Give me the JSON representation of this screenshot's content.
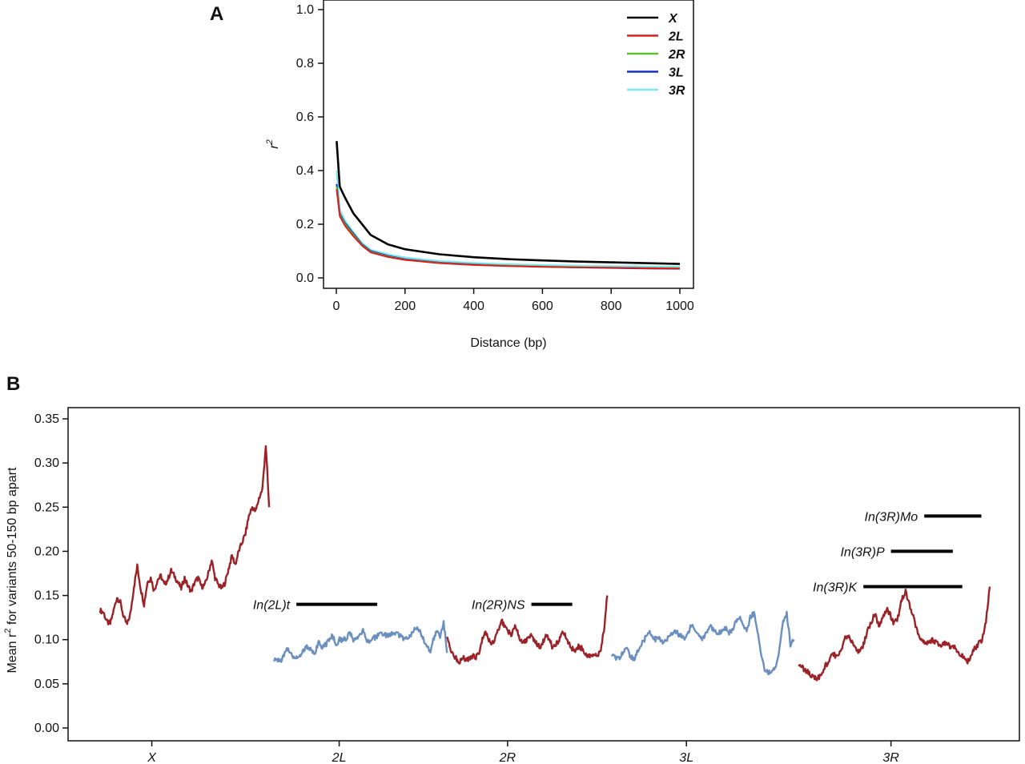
{
  "chart_data": [
    {
      "panel": "A",
      "type": "line",
      "title": "",
      "xlabel": "Distance (bp)",
      "ylabel": "r",
      "ylabel_superscript": "2",
      "xlim": [
        0,
        1000
      ],
      "ylim": [
        0,
        1.0
      ],
      "xticks": [
        0,
        200,
        400,
        600,
        800,
        1000
      ],
      "yticks": [
        0.0,
        0.2,
        0.4,
        0.6,
        0.8,
        1.0
      ],
      "xtick_labels": [
        "0",
        "200",
        "400",
        "600",
        "800",
        "1000"
      ],
      "ytick_labels": [
        "0.0",
        "0.2",
        "0.4",
        "0.6",
        "0.8",
        "1.0"
      ],
      "grid": false,
      "legend_position": "top-right",
      "series": [
        {
          "name": "X",
          "color": "#000000",
          "x": [
            1,
            10,
            25,
            50,
            75,
            100,
            150,
            200,
            300,
            400,
            500,
            600,
            700,
            800,
            900,
            1000
          ],
          "y": [
            0.51,
            0.34,
            0.3,
            0.24,
            0.2,
            0.16,
            0.125,
            0.107,
            0.088,
            0.077,
            0.07,
            0.065,
            0.061,
            0.058,
            0.055,
            0.052
          ]
        },
        {
          "name": "2L",
          "color": "#d62020",
          "x": [
            1,
            10,
            25,
            50,
            75,
            100,
            150,
            200,
            300,
            400,
            500,
            600,
            700,
            800,
            900,
            1000
          ],
          "y": [
            0.33,
            0.23,
            0.195,
            0.155,
            0.12,
            0.095,
            0.078,
            0.067,
            0.055,
            0.048,
            0.044,
            0.041,
            0.039,
            0.038,
            0.036,
            0.035
          ]
        },
        {
          "name": "2R",
          "color": "#5fbf2a",
          "x": [
            1,
            10,
            25,
            50,
            75,
            100,
            150,
            200,
            300,
            400,
            500,
            600,
            700,
            800,
            900,
            1000
          ],
          "y": [
            0.34,
            0.235,
            0.2,
            0.16,
            0.122,
            0.097,
            0.08,
            0.068,
            0.056,
            0.049,
            0.045,
            0.042,
            0.04,
            0.038,
            0.037,
            0.036
          ]
        },
        {
          "name": "3L",
          "color": "#1530c8",
          "x": [
            1,
            10,
            25,
            50,
            75,
            100,
            150,
            200,
            300,
            400,
            500,
            600,
            700,
            800,
            900,
            1000
          ],
          "y": [
            0.35,
            0.24,
            0.205,
            0.165,
            0.125,
            0.1,
            0.082,
            0.07,
            0.057,
            0.05,
            0.045,
            0.042,
            0.039,
            0.037,
            0.035,
            0.034
          ]
        },
        {
          "name": "3R",
          "color": "#7ee6ee",
          "x": [
            1,
            10,
            25,
            50,
            75,
            100,
            150,
            200,
            300,
            400,
            500,
            600,
            700,
            800,
            900,
            1000
          ],
          "y": [
            0.4,
            0.255,
            0.215,
            0.17,
            0.13,
            0.105,
            0.088,
            0.076,
            0.063,
            0.056,
            0.051,
            0.048,
            0.046,
            0.044,
            0.043,
            0.042
          ]
        }
      ]
    },
    {
      "panel": "B",
      "type": "line",
      "title": "",
      "xlabel": "",
      "ylabel": "Mean r",
      "ylabel_superscript": "2",
      "ylabel_suffix": " for variants 50-150 bp apart",
      "ylim": [
        0,
        0.35
      ],
      "yticks": [
        0.0,
        0.05,
        0.1,
        0.15,
        0.2,
        0.25,
        0.3,
        0.35
      ],
      "ytick_labels": [
        "0.00",
        "0.05",
        "0.10",
        "0.15",
        "0.20",
        "0.25",
        "0.30",
        "0.35"
      ],
      "xlim": [
        0,
        1
      ],
      "categories": [
        "X",
        "2L",
        "2R",
        "3L",
        "3R"
      ],
      "category_positions": [
        0.088,
        0.285,
        0.462,
        0.65,
        0.865
      ],
      "grid": false,
      "series": [
        {
          "name": "X",
          "color": "#9b2226",
          "x": [
            0.0,
            0.02,
            0.04,
            0.06,
            0.08,
            0.1,
            0.12,
            0.14,
            0.16,
            0.18,
            0.2,
            0.22,
            0.24,
            0.26,
            0.28,
            0.3,
            0.32,
            0.34,
            0.36,
            0.38,
            0.4,
            0.42,
            0.44,
            0.46,
            0.48,
            0.5,
            0.52,
            0.54,
            0.56,
            0.58,
            0.6,
            0.62,
            0.64,
            0.66,
            0.68,
            0.7,
            0.72,
            0.74,
            0.76,
            0.78,
            0.8,
            0.82,
            0.84,
            0.86,
            0.88,
            0.9,
            0.92,
            0.94,
            0.96,
            0.98,
            1.0
          ],
          "y": [
            0.133,
            0.131,
            0.12,
            0.118,
            0.133,
            0.148,
            0.142,
            0.125,
            0.117,
            0.13,
            0.16,
            0.183,
            0.158,
            0.14,
            0.165,
            0.17,
            0.155,
            0.168,
            0.172,
            0.162,
            0.168,
            0.178,
            0.172,
            0.165,
            0.158,
            0.17,
            0.16,
            0.155,
            0.165,
            0.17,
            0.16,
            0.162,
            0.175,
            0.19,
            0.17,
            0.162,
            0.158,
            0.165,
            0.18,
            0.195,
            0.185,
            0.2,
            0.21,
            0.22,
            0.24,
            0.25,
            0.245,
            0.26,
            0.27,
            0.32,
            0.25
          ]
        },
        {
          "name": "2L",
          "color": "#6b8fbf",
          "x": [
            0.0,
            0.02,
            0.04,
            0.06,
            0.08,
            0.1,
            0.12,
            0.14,
            0.16,
            0.18,
            0.2,
            0.22,
            0.24,
            0.26,
            0.28,
            0.3,
            0.32,
            0.34,
            0.36,
            0.38,
            0.4,
            0.42,
            0.44,
            0.46,
            0.48,
            0.5,
            0.52,
            0.54,
            0.56,
            0.58,
            0.6,
            0.62,
            0.64,
            0.66,
            0.68,
            0.7,
            0.72,
            0.74,
            0.76,
            0.78,
            0.8,
            0.82,
            0.84,
            0.86,
            0.88,
            0.9,
            0.92,
            0.94,
            0.96,
            0.98,
            1.0
          ],
          "y": [
            0.075,
            0.078,
            0.076,
            0.082,
            0.09,
            0.085,
            0.08,
            0.08,
            0.084,
            0.09,
            0.092,
            0.088,
            0.086,
            0.098,
            0.092,
            0.094,
            0.1,
            0.105,
            0.095,
            0.1,
            0.1,
            0.102,
            0.108,
            0.098,
            0.1,
            0.106,
            0.11,
            0.098,
            0.1,
            0.102,
            0.104,
            0.108,
            0.105,
            0.104,
            0.106,
            0.108,
            0.105,
            0.103,
            0.1,
            0.104,
            0.108,
            0.115,
            0.11,
            0.102,
            0.095,
            0.085,
            0.1,
            0.11,
            0.104,
            0.12,
            0.085
          ]
        },
        {
          "name": "2R",
          "color": "#9b2226",
          "x": [
            0.0,
            0.02,
            0.04,
            0.06,
            0.08,
            0.1,
            0.12,
            0.14,
            0.16,
            0.18,
            0.2,
            0.22,
            0.24,
            0.26,
            0.28,
            0.3,
            0.32,
            0.34,
            0.36,
            0.38,
            0.4,
            0.42,
            0.44,
            0.46,
            0.48,
            0.5,
            0.52,
            0.54,
            0.56,
            0.58,
            0.6,
            0.62,
            0.64,
            0.66,
            0.68,
            0.7,
            0.72,
            0.74,
            0.76,
            0.78,
            0.8,
            0.82,
            0.84,
            0.86,
            0.88,
            0.9,
            0.92,
            0.94,
            0.96,
            0.98,
            1.0
          ],
          "y": [
            0.105,
            0.09,
            0.082,
            0.078,
            0.075,
            0.08,
            0.076,
            0.078,
            0.082,
            0.08,
            0.085,
            0.1,
            0.108,
            0.1,
            0.095,
            0.1,
            0.112,
            0.122,
            0.115,
            0.11,
            0.105,
            0.115,
            0.108,
            0.1,
            0.098,
            0.1,
            0.105,
            0.1,
            0.095,
            0.092,
            0.098,
            0.105,
            0.1,
            0.09,
            0.095,
            0.1,
            0.108,
            0.104,
            0.095,
            0.09,
            0.088,
            0.092,
            0.09,
            0.085,
            0.082,
            0.08,
            0.085,
            0.082,
            0.09,
            0.11,
            0.15
          ]
        },
        {
          "name": "3L",
          "color": "#6b8fbf",
          "x": [
            0.0,
            0.02,
            0.04,
            0.06,
            0.08,
            0.1,
            0.12,
            0.14,
            0.16,
            0.18,
            0.2,
            0.22,
            0.24,
            0.26,
            0.28,
            0.3,
            0.32,
            0.34,
            0.36,
            0.38,
            0.4,
            0.42,
            0.44,
            0.46,
            0.48,
            0.5,
            0.52,
            0.54,
            0.56,
            0.58,
            0.6,
            0.62,
            0.64,
            0.66,
            0.68,
            0.7,
            0.72,
            0.74,
            0.76,
            0.78,
            0.8,
            0.82,
            0.84,
            0.86,
            0.88,
            0.9,
            0.92,
            0.94,
            0.96,
            0.98,
            1.0
          ],
          "y": [
            0.082,
            0.08,
            0.078,
            0.085,
            0.09,
            0.082,
            0.078,
            0.085,
            0.095,
            0.1,
            0.11,
            0.104,
            0.1,
            0.102,
            0.098,
            0.1,
            0.105,
            0.11,
            0.108,
            0.104,
            0.1,
            0.108,
            0.118,
            0.112,
            0.105,
            0.1,
            0.108,
            0.115,
            0.11,
            0.105,
            0.11,
            0.114,
            0.108,
            0.11,
            0.12,
            0.125,
            0.115,
            0.11,
            0.125,
            0.13,
            0.11,
            0.085,
            0.065,
            0.062,
            0.065,
            0.07,
            0.09,
            0.12,
            0.13,
            0.095,
            0.1
          ]
        },
        {
          "name": "3R",
          "color": "#9b2226",
          "x": [
            0.0,
            0.02,
            0.04,
            0.06,
            0.08,
            0.1,
            0.12,
            0.14,
            0.16,
            0.18,
            0.2,
            0.22,
            0.24,
            0.26,
            0.28,
            0.3,
            0.32,
            0.34,
            0.36,
            0.38,
            0.4,
            0.42,
            0.44,
            0.46,
            0.48,
            0.5,
            0.52,
            0.54,
            0.56,
            0.58,
            0.6,
            0.62,
            0.64,
            0.66,
            0.68,
            0.7,
            0.72,
            0.74,
            0.76,
            0.78,
            0.8,
            0.82,
            0.84,
            0.86,
            0.88,
            0.9,
            0.92,
            0.94,
            0.96,
            0.98,
            1.0
          ],
          "y": [
            0.07,
            0.068,
            0.065,
            0.06,
            0.058,
            0.056,
            0.06,
            0.07,
            0.075,
            0.085,
            0.08,
            0.088,
            0.1,
            0.105,
            0.098,
            0.09,
            0.085,
            0.095,
            0.11,
            0.12,
            0.13,
            0.115,
            0.125,
            0.135,
            0.128,
            0.118,
            0.125,
            0.145,
            0.155,
            0.14,
            0.125,
            0.11,
            0.1,
            0.098,
            0.095,
            0.1,
            0.097,
            0.094,
            0.096,
            0.094,
            0.092,
            0.09,
            0.085,
            0.082,
            0.075,
            0.08,
            0.09,
            0.095,
            0.1,
            0.12,
            0.16
          ]
        }
      ],
      "series_x_ranges": [
        [
          0.0,
          0.19
        ],
        [
          0.195,
          0.39
        ],
        [
          0.39,
          0.57
        ],
        [
          0.575,
          0.78
        ],
        [
          0.785,
          1.0
        ]
      ],
      "annotations": [
        {
          "label": "In(2L)t",
          "x_start": 0.24,
          "x_end": 0.325,
          "y": 0.14
        },
        {
          "label": "In(2R)NS",
          "x_start": 0.487,
          "x_end": 0.53,
          "y": 0.14
        },
        {
          "label": "In(3R)K",
          "x_start": 0.836,
          "x_end": 0.94,
          "y": 0.16
        },
        {
          "label": "In(3R)P",
          "x_start": 0.865,
          "x_end": 0.93,
          "y": 0.2
        },
        {
          "label": "In(3R)Mo",
          "x_start": 0.9,
          "x_end": 0.96,
          "y": 0.24
        }
      ]
    }
  ]
}
